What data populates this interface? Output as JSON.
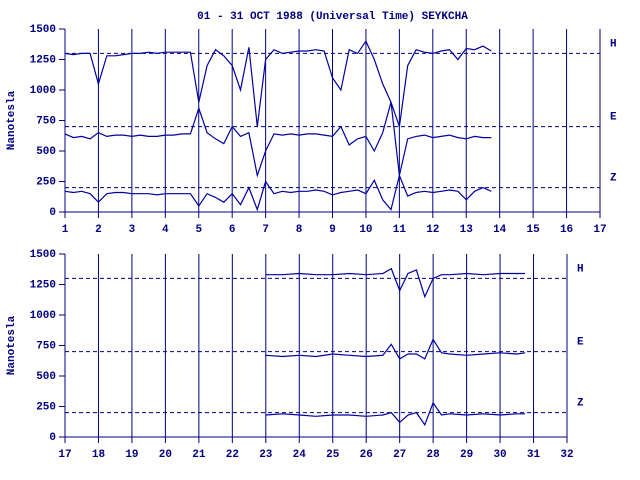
{
  "chart_data": [
    {
      "type": "line",
      "title": "01 - 31 OCT 1988 (Universal Time) SEYKCHA",
      "y_label": "Nanotesla",
      "x": [
        1,
        1.25,
        1.5,
        1.75,
        2,
        2.25,
        2.5,
        2.75,
        3,
        3.25,
        3.5,
        3.75,
        4,
        4.25,
        4.5,
        4.75,
        5,
        5.25,
        5.5,
        5.75,
        6,
        6.25,
        6.5,
        6.75,
        7,
        7.25,
        7.5,
        7.75,
        8,
        8.25,
        8.5,
        8.75,
        9,
        9.25,
        9.5,
        9.75,
        10,
        10.25,
        10.5,
        10.75,
        11,
        11.25,
        11.5,
        11.75,
        12,
        12.25,
        12.5,
        12.75,
        13,
        13.25,
        13.5,
        13.75
      ],
      "series": [
        {
          "name": "H",
          "color": "#0000a0",
          "baseline": 1300,
          "values": [
            1300,
            1290,
            1300,
            1300,
            1050,
            1280,
            1280,
            1290,
            1300,
            1300,
            1310,
            1300,
            1310,
            1310,
            1310,
            1310,
            900,
            1200,
            1330,
            1280,
            1200,
            1000,
            1350,
            700,
            1250,
            1330,
            1300,
            1310,
            1320,
            1320,
            1330,
            1320,
            1100,
            1000,
            1330,
            1300,
            1400,
            1250,
            1050,
            900,
            700,
            1200,
            1330,
            1310,
            1300,
            1320,
            1330,
            1250,
            1340,
            1330,
            1360,
            1320
          ]
        },
        {
          "name": "E",
          "color": "#0000a0",
          "baseline": 700,
          "values": [
            640,
            610,
            620,
            600,
            650,
            620,
            630,
            630,
            620,
            630,
            620,
            620,
            630,
            630,
            640,
            640,
            850,
            650,
            600,
            560,
            700,
            620,
            650,
            300,
            500,
            640,
            630,
            640,
            630,
            640,
            640,
            630,
            620,
            700,
            550,
            600,
            620,
            500,
            650,
            900,
            300,
            600,
            620,
            630,
            610,
            620,
            630,
            610,
            600,
            620,
            610,
            610
          ]
        },
        {
          "name": "Z",
          "color": "#0000a0",
          "baseline": 200,
          "values": [
            170,
            160,
            170,
            150,
            80,
            150,
            160,
            160,
            150,
            150,
            150,
            140,
            150,
            150,
            150,
            150,
            50,
            150,
            120,
            80,
            150,
            60,
            200,
            20,
            250,
            150,
            170,
            160,
            170,
            170,
            180,
            170,
            140,
            160,
            170,
            180,
            150,
            260,
            100,
            20,
            300,
            130,
            160,
            170,
            160,
            170,
            180,
            170,
            100,
            170,
            200,
            170
          ]
        }
      ],
      "xlim": [
        1,
        17
      ],
      "xticks": [
        1,
        2,
        3,
        4,
        5,
        6,
        7,
        8,
        9,
        10,
        11,
        12,
        13,
        14,
        15,
        16,
        17
      ],
      "ylim": [
        0,
        1500
      ],
      "yticks": [
        0,
        250,
        500,
        750,
        1000,
        1250,
        1500
      ]
    },
    {
      "type": "line",
      "y_label": "Nanotesla",
      "x": [
        23,
        23.5,
        24,
        24.5,
        25,
        25.5,
        26,
        26.5,
        26.75,
        27,
        27.25,
        27.5,
        27.75,
        28,
        28.25,
        28.5,
        29,
        29.5,
        30,
        30.5,
        30.75
      ],
      "series": [
        {
          "name": "H",
          "color": "#0000a0",
          "baseline": 1300,
          "values": [
            1330,
            1330,
            1340,
            1330,
            1330,
            1340,
            1330,
            1340,
            1380,
            1200,
            1340,
            1370,
            1150,
            1300,
            1330,
            1330,
            1340,
            1330,
            1340,
            1340,
            1340
          ]
        },
        {
          "name": "E",
          "color": "#0000a0",
          "baseline": 700,
          "values": [
            670,
            660,
            670,
            660,
            680,
            670,
            660,
            670,
            760,
            640,
            680,
            680,
            640,
            800,
            690,
            680,
            670,
            680,
            690,
            680,
            690
          ]
        },
        {
          "name": "Z",
          "color": "#0000a0",
          "baseline": 200,
          "values": [
            180,
            190,
            180,
            170,
            180,
            180,
            170,
            180,
            200,
            120,
            180,
            200,
            100,
            280,
            180,
            190,
            180,
            190,
            180,
            190,
            190
          ]
        }
      ],
      "xlim": [
        17,
        32
      ],
      "xticks": [
        17,
        18,
        19,
        20,
        21,
        22,
        23,
        24,
        25,
        26,
        27,
        28,
        29,
        30,
        31,
        32
      ],
      "ylim": [
        0,
        1500
      ],
      "yticks": [
        0,
        250,
        500,
        750,
        1000,
        1250,
        1500
      ]
    }
  ]
}
